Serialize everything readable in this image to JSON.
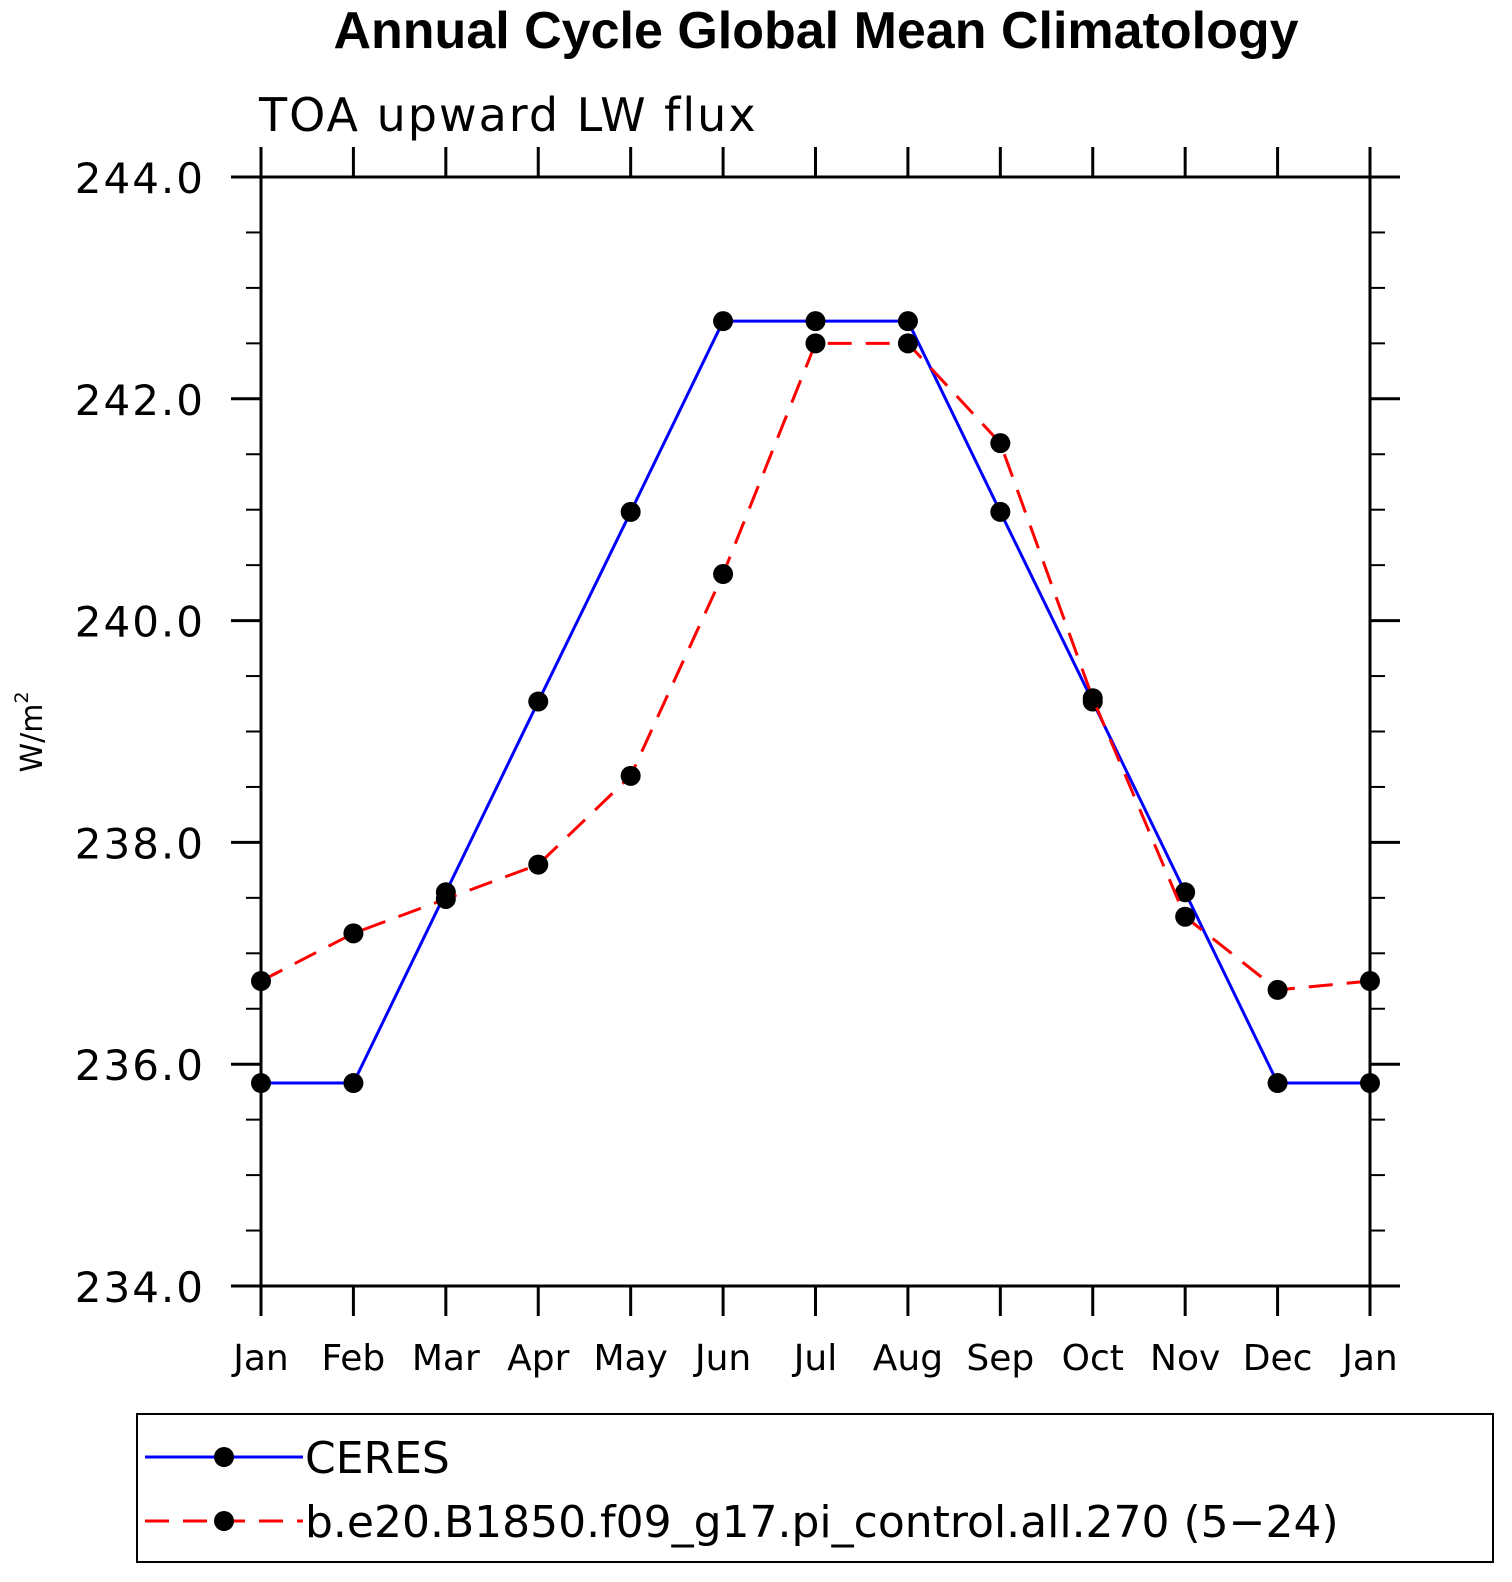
{
  "chart_data": {
    "type": "line",
    "title": "Annual Cycle Global Mean Climatology",
    "subtitle": "TOA upward LW flux",
    "ylabel": "W/m",
    "ylabel_superscript": "2",
    "xlabel": "",
    "categories": [
      "Jan",
      "Feb",
      "Mar",
      "Apr",
      "May",
      "Jun",
      "Jul",
      "Aug",
      "Sep",
      "Oct",
      "Nov",
      "Dec",
      "Jan"
    ],
    "ylim": [
      234.0,
      244.0
    ],
    "yticks": [
      "234.0",
      "236.0",
      "238.0",
      "240.0",
      "242.0",
      "244.0"
    ],
    "grid": false,
    "legend_position": "bottom",
    "series": [
      {
        "name": "CERES",
        "color": "#0000ff",
        "line_style": "solid",
        "marker": "filled-circle",
        "values": [
          235.83,
          235.83,
          237.55,
          239.27,
          240.98,
          242.7,
          242.7,
          242.7,
          240.98,
          239.27,
          237.55,
          235.83,
          235.83
        ]
      },
      {
        "name": "b.e20.B1850.f09_g17.pi_control.all.270 (5−24)",
        "color": "#ff0000",
        "line_style": "dashed",
        "marker": "filled-circle",
        "values": [
          236.75,
          237.18,
          237.49,
          237.8,
          238.6,
          240.42,
          242.5,
          242.5,
          241.6,
          239.3,
          237.33,
          236.67,
          236.75
        ]
      }
    ]
  }
}
